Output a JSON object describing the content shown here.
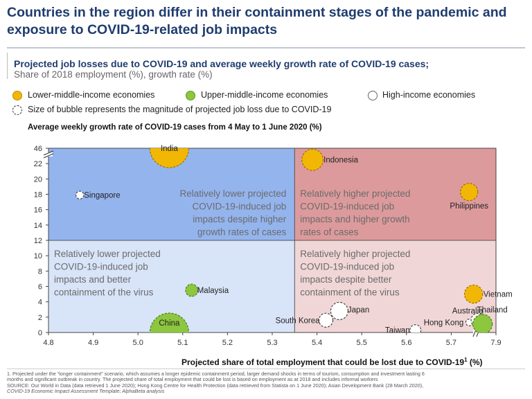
{
  "header": {
    "title": "Countries in the region differ in their containment stages of the pandemic and exposure to COVID-19-related job impacts",
    "chart_title": "Projected job losses due to COVID-19 and average weekly growth rate of COVID-19 cases;",
    "chart_subtitle": "Share of 2018 employment (%), growth rate (%)"
  },
  "legend": {
    "lower_middle": "Lower-middle-income economies",
    "upper_middle": "Upper-middle-income economies",
    "high_income": "High-income economies",
    "bubble_size": "Size of bubble represents the magnitude of projected job loss due to COVID-19"
  },
  "colors": {
    "lower_middle": "#f2b705",
    "upper_middle": "#8dc63f",
    "high_income": "#ffffff",
    "q_top_left": "#94b4ee",
    "q_top_right": "#dd9a9c",
    "q_bottom_left": "#d8e4f8",
    "q_bottom_right": "#f1d6d7"
  },
  "chart_data": {
    "type": "scatter",
    "ylabel": "Average weekly growth rate of COVID-19 cases from 4 May to 1 June 2020 (%)",
    "xlabel": "Projected share of total employment that could be lost due to COVID-19",
    "xlabel_superscript": "1",
    "xlabel_unit": " (%)",
    "x_ticks": [
      "4.8",
      "4.9",
      "5.0",
      "5.1",
      "5.2",
      "5.3",
      "5.4",
      "5.5",
      "5.6",
      "5.7",
      "7.9"
    ],
    "y_ticks": [
      "0",
      "2",
      "4",
      "6",
      "8",
      "10",
      "12",
      "14",
      "16",
      "18",
      "20",
      "22",
      "46"
    ],
    "xlim": [
      4.8,
      5.8
    ],
    "ylim": [
      0,
      24
    ],
    "x_axis_break": "between 5.7 and 7.9",
    "y_axis_break": "between 22 and 46",
    "quadrant_divider": {
      "x": 5.35,
      "y": 12
    },
    "quadrants": {
      "top_left": [
        "Relatively lower projected",
        "COVID-19-induced job",
        "impacts despite higher",
        "growth rates of cases"
      ],
      "top_right": [
        "Relatively higher projected",
        "COVID-19-induced job",
        "impacts and higher growth",
        "rates of cases"
      ],
      "bottom_left": [
        "Relatively lower projected",
        "COVID-19-induced job",
        "impacts and better",
        "containment of the virus"
      ],
      "bottom_right": [
        "Relatively higher projected",
        "COVID-19-induced job",
        "impacts despite better",
        "containment of the virus"
      ]
    },
    "points": [
      {
        "name": "India",
        "x": 5.07,
        "y": 24,
        "group": "lower_middle",
        "size": 1.0
      },
      {
        "name": "Indonesia",
        "x": 5.39,
        "y": 22.5,
        "group": "lower_middle",
        "size": 0.3
      },
      {
        "name": "Singapore",
        "x": 4.87,
        "y": 17.9,
        "group": "high_income",
        "size": 0.04
      },
      {
        "name": "Philippines",
        "x": 5.74,
        "y": 18.3,
        "group": "lower_middle",
        "size": 0.2
      },
      {
        "name": "Malaysia",
        "x": 5.12,
        "y": 5.5,
        "group": "upper_middle",
        "size": 0.1
      },
      {
        "name": "China",
        "x": 5.07,
        "y": 0,
        "group": "upper_middle",
        "size": 1.0
      },
      {
        "name": "Vietnam",
        "x": 5.75,
        "y": 5.0,
        "group": "lower_middle",
        "size": 0.22
      },
      {
        "name": "Japan",
        "x": 5.45,
        "y": 2.8,
        "group": "high_income",
        "size": 0.2
      },
      {
        "name": "South Korea",
        "x": 5.42,
        "y": 1.6,
        "group": "high_income",
        "size": 0.13
      },
      {
        "name": "Taiwan",
        "x": 5.62,
        "y": 0.3,
        "group": "high_income",
        "size": 0.08
      },
      {
        "name": "Hong Kong",
        "x": 5.74,
        "y": 1.3,
        "group": "high_income",
        "size": 0.03
      },
      {
        "name": "Australia",
        "x": 5.76,
        "y": 1.6,
        "group": "high_income",
        "size": 0.13
      },
      {
        "name": "Thailand",
        "x": 5.77,
        "y": 1.1,
        "group": "upper_middle",
        "size": 0.25
      }
    ]
  },
  "footnotes": {
    "line1": "1.  Projected under the “longer containment” scenario, which assumes a longer epidemic containment period, larger demand shocks in terms of tourism, consumption and investment lasting 6",
    "line2": "     months and significant outbreak in country. The projected share of total employment that could be lost is based on employment as at 2018 and includes informal workers",
    "line3": "SOURCE: Our World in Data (data retrieved 1 June 2020); Hong Kong Centre for Health Protection (data retrieved from Statista on 1 June 2020); Asian Development Bank (28 March 2020),",
    "line4": "COVID-19 Economic Impact Assessment Template; AlphaBeta analysis"
  }
}
